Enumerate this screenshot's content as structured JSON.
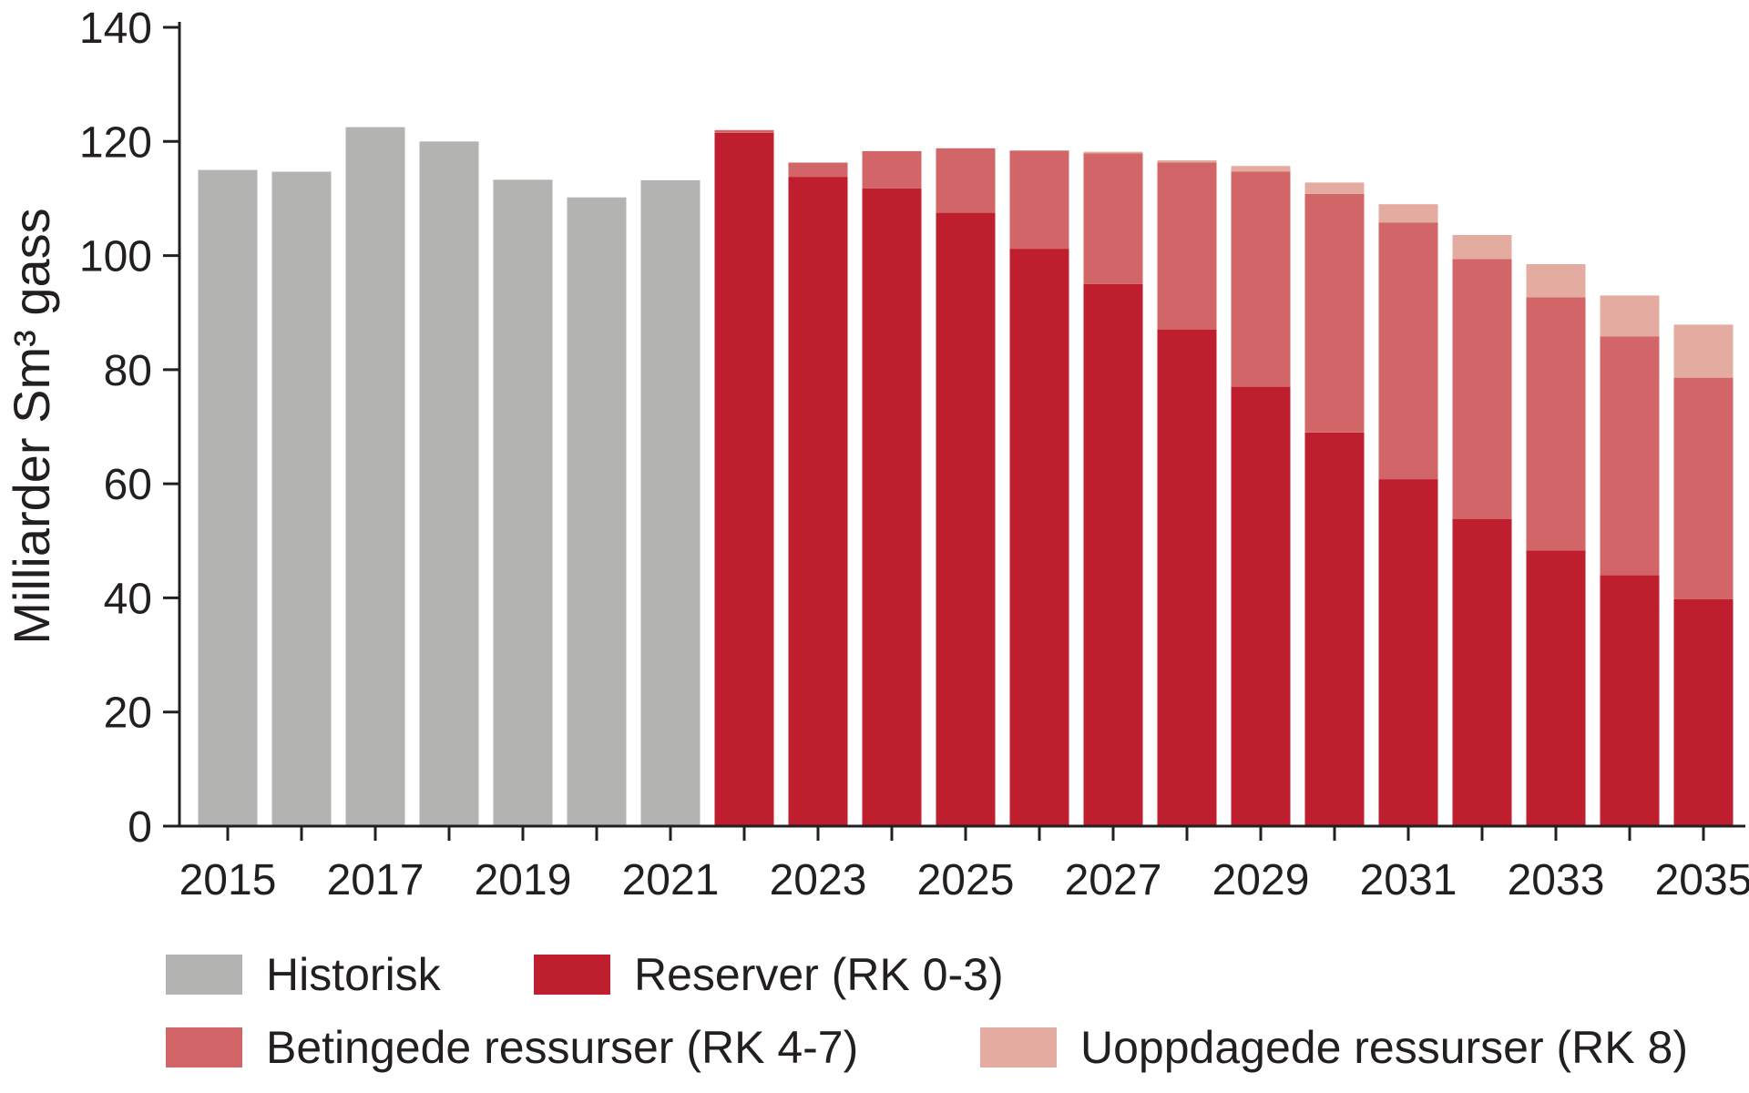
{
  "chart_data": {
    "type": "bar",
    "stacked": true,
    "ylabel": "Milliarder Sm³ gass",
    "xlabel": "",
    "ylim": [
      0,
      140
    ],
    "yticks": [
      0,
      20,
      40,
      60,
      80,
      100,
      120,
      140
    ],
    "xtick_labels": [
      "2015",
      "2017",
      "2019",
      "2021",
      "2023",
      "2025",
      "2027",
      "2029",
      "2031",
      "2033",
      "2035"
    ],
    "categories": [
      "2015",
      "2016",
      "2017",
      "2018",
      "2019",
      "2020",
      "2021",
      "2022",
      "2023",
      "2024",
      "2025",
      "2026",
      "2027",
      "2028",
      "2029",
      "2030",
      "2031",
      "2032",
      "2033",
      "2034",
      "2035"
    ],
    "series": [
      {
        "name": "Historisk",
        "color": "#b3b3b2",
        "values": [
          115,
          114.7,
          122.5,
          120,
          113.3,
          110.2,
          113.2,
          0,
          0,
          0,
          0,
          0,
          0,
          0,
          0,
          0,
          0,
          0,
          0,
          0,
          0
        ]
      },
      {
        "name": "Reserver (RK 0-3)",
        "color": "#be1e2d",
        "values": [
          0,
          0,
          0,
          0,
          0,
          0,
          0,
          121.5,
          113.8,
          111.8,
          107.5,
          101.2,
          95.0,
          87.0,
          77.0,
          69.0,
          60.8,
          53.8,
          48.3,
          44.0,
          39.8
        ]
      },
      {
        "name": "Betingede ressurser (RK 4-7)",
        "color": "#d16567",
        "values": [
          0,
          0,
          0,
          0,
          0,
          0,
          0,
          0.5,
          2.5,
          6.5,
          11.3,
          17.2,
          22.9,
          29.3,
          37.7,
          41.8,
          45.0,
          45.6,
          44.4,
          41.8,
          38.8
        ]
      },
      {
        "name": "Uoppdagede ressurser (RK 8)",
        "color": "#e4aca0",
        "values": [
          0,
          0,
          0,
          0,
          0,
          0,
          0,
          0,
          0,
          0,
          0,
          0,
          0.3,
          0.4,
          1.0,
          2.0,
          3.2,
          4.2,
          5.8,
          7.2,
          9.3
        ]
      }
    ],
    "legend_position": "bottom",
    "grid": false
  }
}
